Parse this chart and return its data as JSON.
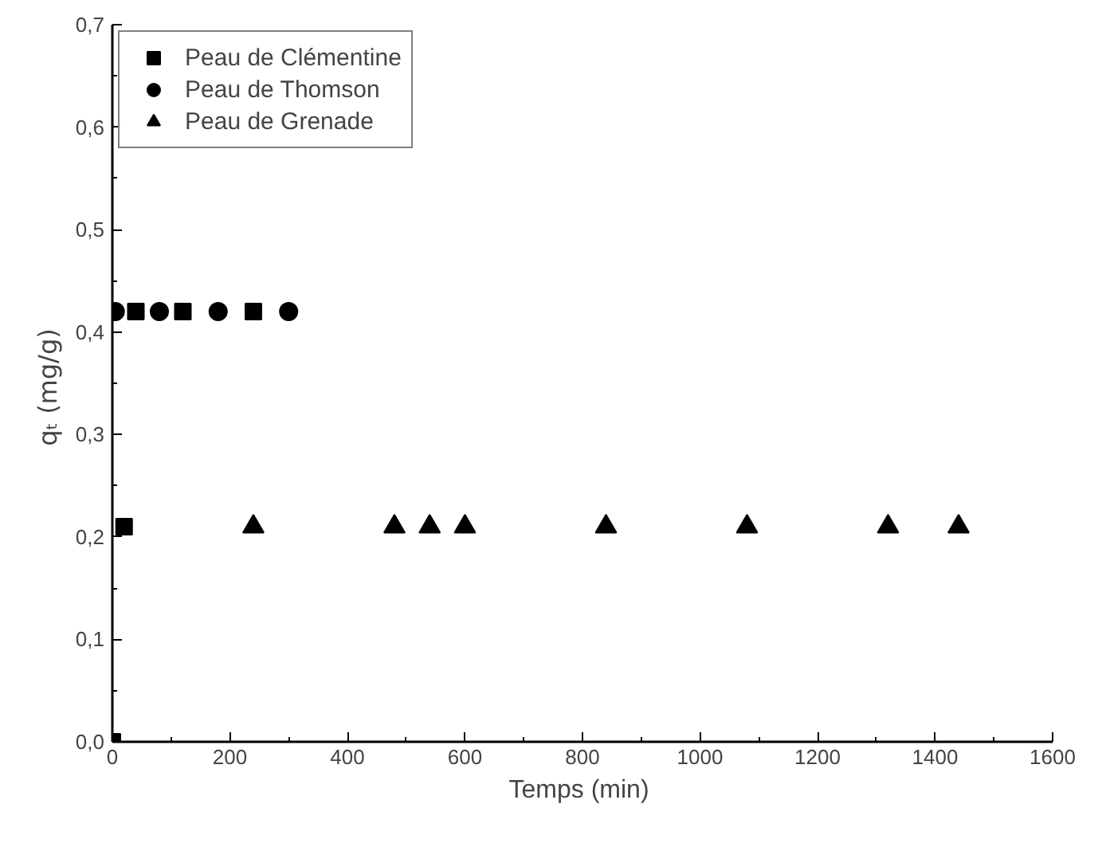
{
  "chart_data": {
    "type": "scatter",
    "xlabel": "Temps  (min)",
    "ylabel": "qₜ  (mg/g)",
    "xlim": [
      0,
      1600
    ],
    "ylim": [
      0,
      0.7
    ],
    "xticks": [
      0,
      200,
      400,
      600,
      800,
      1000,
      1200,
      1400,
      1600
    ],
    "yticks": [
      {
        "value": 0,
        "label": "0,0"
      },
      {
        "value": 0.1,
        "label": "0,1"
      },
      {
        "value": 0.2,
        "label": "0,2"
      },
      {
        "value": 0.3,
        "label": "0,3"
      },
      {
        "value": 0.4,
        "label": "0,4"
      },
      {
        "value": 0.5,
        "label": "0,5"
      },
      {
        "value": 0.6,
        "label": "0,6"
      },
      {
        "value": 0.7,
        "label": "0,7"
      }
    ],
    "grid": false,
    "legend": "top left",
    "series": [
      {
        "name": "Peau de Clémentine",
        "color": "#000000",
        "marker": "square",
        "x": [
          0,
          20,
          40,
          120,
          240
        ],
        "values": [
          0,
          0.21,
          0.42,
          0.42,
          0.42
        ]
      },
      {
        "name": "Peau de Thomson",
        "color": "#000000",
        "marker": "circle",
        "x": [
          5,
          80,
          180,
          300
        ],
        "values": [
          0.42,
          0.42,
          0.42,
          0.42
        ]
      },
      {
        "name": "Peau de Grenade",
        "color": "#000000",
        "marker": "triangle",
        "x": [
          240,
          480,
          540,
          600,
          840,
          1080,
          1320,
          1440
        ],
        "values": [
          0.21,
          0.21,
          0.21,
          0.21,
          0.21,
          0.21,
          0.21,
          0.21
        ]
      }
    ]
  }
}
